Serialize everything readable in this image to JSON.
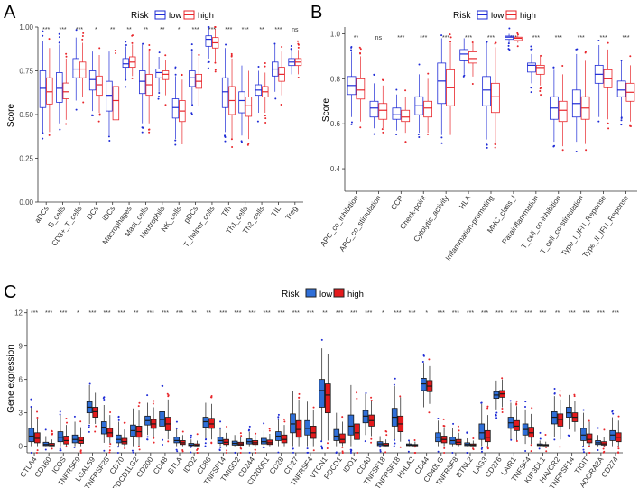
{
  "panels": [
    {
      "letter": "A",
      "legend_title": "Risk",
      "legend_items": [
        "low",
        "high"
      ],
      "ylabel": "Score",
      "ylim": [
        0,
        1
      ],
      "yticks": [
        "0.00",
        "0.25",
        "0.50",
        "0.75",
        "1.00"
      ],
      "ytick_values": [
        0,
        0.25,
        0.5,
        0.75,
        1.0
      ]
    },
    {
      "letter": "B",
      "legend_title": "Risk",
      "legend_items": [
        "low",
        "high"
      ],
      "ylabel": "Score",
      "ylim": [
        0.3,
        1.03
      ],
      "yticks": [
        "0.4",
        "0.6",
        "0.8",
        "1.0"
      ],
      "ytick_values": [
        0.4,
        0.6,
        0.8,
        1.0
      ]
    },
    {
      "letter": "C",
      "legend_title": "Risk",
      "legend_items": [
        "low",
        "high"
      ],
      "ylabel": "Gene expression",
      "ylim": [
        -0.6,
        12.3
      ],
      "yticks": [
        "0",
        "3",
        "6",
        "9",
        "12"
      ],
      "ytick_values": [
        0,
        3,
        6,
        9,
        12
      ]
    }
  ],
  "colors": {
    "low": "#1e2bd6",
    "high": "#e8262b",
    "low_fill": "#2f6fd8",
    "high_fill": "#e41a1c",
    "axis": "#333333",
    "text": "#222222"
  },
  "chart_data": [
    {
      "type": "boxplot",
      "title": "A",
      "ylabel": "Score",
      "ylim": [
        0,
        1
      ],
      "series": [
        {
          "name": "low"
        },
        {
          "name": "high"
        }
      ],
      "categories": [
        "aDCs",
        "B_cells",
        "CD8+_T_cells",
        "DCs",
        "iDCs",
        "Macrophages",
        "Mast_cells",
        "Neutrophils",
        "NK_cells",
        "pDCs",
        "T_helper_cells",
        "Tfh",
        "Th1_cells",
        "Th2_cells",
        "TIL",
        "Treg"
      ],
      "significance": [
        "***",
        "***",
        "***",
        "*",
        "**",
        "**",
        "**",
        "**",
        "*",
        "***",
        "***",
        "***",
        "***",
        "**",
        "***",
        "ns"
      ],
      "low": [
        [
          0.4,
          0.54,
          0.65,
          0.75,
          0.92
        ],
        [
          0.45,
          0.57,
          0.65,
          0.74,
          0.9
        ],
        [
          0.58,
          0.71,
          0.76,
          0.82,
          0.94
        ],
        [
          0.52,
          0.64,
          0.7,
          0.75,
          0.86
        ],
        [
          0.38,
          0.52,
          0.61,
          0.69,
          0.86
        ],
        [
          0.7,
          0.77,
          0.79,
          0.82,
          0.89
        ],
        [
          0.45,
          0.62,
          0.69,
          0.75,
          0.9
        ],
        [
          0.63,
          0.71,
          0.74,
          0.76,
          0.83
        ],
        [
          0.36,
          0.48,
          0.54,
          0.59,
          0.72
        ],
        [
          0.56,
          0.66,
          0.71,
          0.75,
          0.86
        ],
        [
          0.82,
          0.89,
          0.93,
          0.95,
          1.0
        ],
        [
          0.4,
          0.54,
          0.63,
          0.71,
          0.88
        ],
        [
          0.38,
          0.51,
          0.58,
          0.63,
          0.78
        ],
        [
          0.51,
          0.61,
          0.64,
          0.67,
          0.75
        ],
        [
          0.63,
          0.72,
          0.76,
          0.8,
          0.9
        ],
        [
          0.73,
          0.78,
          0.8,
          0.82,
          0.87
        ]
      ],
      "high": [
        [
          0.4,
          0.56,
          0.63,
          0.71,
          0.88
        ],
        [
          0.47,
          0.59,
          0.63,
          0.68,
          0.82
        ],
        [
          0.6,
          0.71,
          0.76,
          0.8,
          0.91
        ],
        [
          0.51,
          0.61,
          0.67,
          0.72,
          0.84
        ],
        [
          0.27,
          0.47,
          0.58,
          0.66,
          0.84
        ],
        [
          0.72,
          0.77,
          0.8,
          0.83,
          0.9
        ],
        [
          0.45,
          0.61,
          0.67,
          0.73,
          0.87
        ],
        [
          0.61,
          0.7,
          0.73,
          0.75,
          0.81
        ],
        [
          0.33,
          0.46,
          0.52,
          0.58,
          0.7
        ],
        [
          0.55,
          0.65,
          0.69,
          0.73,
          0.83
        ],
        [
          0.8,
          0.88,
          0.91,
          0.94,
          0.99
        ],
        [
          0.36,
          0.5,
          0.58,
          0.66,
          0.82
        ],
        [
          0.36,
          0.49,
          0.55,
          0.6,
          0.75
        ],
        [
          0.51,
          0.6,
          0.63,
          0.66,
          0.74
        ],
        [
          0.61,
          0.69,
          0.73,
          0.77,
          0.86
        ],
        [
          0.73,
          0.78,
          0.8,
          0.82,
          0.87
        ]
      ]
    },
    {
      "type": "boxplot",
      "title": "B",
      "ylabel": "Score",
      "ylim": [
        0.3,
        1.03
      ],
      "series": [
        {
          "name": "low"
        },
        {
          "name": "high"
        }
      ],
      "categories": [
        "APC_co_inhibition",
        "APC_co_stimulation",
        "CCR",
        "Check-point",
        "Cytolytic_activity",
        "HLA",
        "Inflammation-promoting",
        "MHC_class_I",
        "Parainflammation",
        "T_cell_co-inhibition",
        "T_cell_co-stimulation",
        "Type_I_IFN_Reponse",
        "Type_II_IFN_Reponse"
      ],
      "significance": [
        "**",
        "ns",
        "***",
        "***",
        "***",
        "***",
        "***",
        "***",
        "***",
        "***",
        "***",
        "***",
        "***"
      ],
      "low": [
        [
          0.63,
          0.73,
          0.77,
          0.81,
          0.92
        ],
        [
          0.58,
          0.63,
          0.67,
          0.7,
          0.78
        ],
        [
          0.57,
          0.62,
          0.64,
          0.67,
          0.73
        ],
        [
          0.56,
          0.64,
          0.68,
          0.72,
          0.82
        ],
        [
          0.55,
          0.69,
          0.79,
          0.87,
          0.98
        ],
        [
          0.82,
          0.88,
          0.91,
          0.93,
          0.98
        ],
        [
          0.53,
          0.68,
          0.75,
          0.81,
          0.96
        ],
        [
          0.96,
          0.975,
          0.985,
          0.99,
          1.0
        ],
        [
          0.78,
          0.83,
          0.86,
          0.87,
          0.91
        ],
        [
          0.52,
          0.62,
          0.67,
          0.72,
          0.84
        ],
        [
          0.52,
          0.63,
          0.69,
          0.75,
          0.91
        ],
        [
          0.63,
          0.78,
          0.82,
          0.86,
          0.95
        ],
        [
          0.63,
          0.72,
          0.75,
          0.79,
          0.88
        ]
      ],
      "high": [
        [
          0.61,
          0.71,
          0.75,
          0.8,
          0.9
        ],
        [
          0.58,
          0.62,
          0.66,
          0.69,
          0.77
        ],
        [
          0.56,
          0.61,
          0.63,
          0.66,
          0.72
        ],
        [
          0.56,
          0.63,
          0.67,
          0.7,
          0.8
        ],
        [
          0.55,
          0.68,
          0.76,
          0.84,
          0.96
        ],
        [
          0.81,
          0.87,
          0.89,
          0.92,
          0.96
        ],
        [
          0.51,
          0.65,
          0.72,
          0.78,
          0.94
        ],
        [
          0.96,
          0.97,
          0.98,
          0.985,
          0.995
        ],
        [
          0.77,
          0.82,
          0.85,
          0.86,
          0.9
        ],
        [
          0.5,
          0.61,
          0.66,
          0.7,
          0.82
        ],
        [
          0.51,
          0.62,
          0.67,
          0.72,
          0.88
        ],
        [
          0.62,
          0.76,
          0.8,
          0.84,
          0.93
        ],
        [
          0.61,
          0.7,
          0.74,
          0.78,
          0.86
        ]
      ]
    },
    {
      "type": "boxplot",
      "title": "C",
      "ylabel": "Gene expression",
      "ylim": [
        -0.6,
        12.3
      ],
      "series": [
        {
          "name": "low"
        },
        {
          "name": "high"
        }
      ],
      "categories": [
        "CTLA4",
        "CD160",
        "ICOS",
        "TNFRSF9",
        "LGALS9",
        "TNFRSF25",
        "CD70",
        "PDCD1LG2",
        "CD200",
        "CD48",
        "BTLA",
        "IDO2",
        "CD86",
        "TNFSF14",
        "TMIGD2",
        "CD244",
        "CD200R1",
        "CD28",
        "CD27",
        "TNFRSF4",
        "VTCN1",
        "PDCD1",
        "IDO1",
        "CD40",
        "TNFSF18",
        "TNFRSF18",
        "HHLA2",
        "CD44",
        "CD40LG",
        "TNFRSF8",
        "BTNL2",
        "LAG3",
        "CD276",
        "LAIR1",
        "TNFSF4",
        "KIR3DL1",
        "HAVCR2",
        "TNFRSF14",
        "TIGIT",
        "ADORA2A",
        "CD274"
      ],
      "significance": [
        "***",
        "***",
        "***",
        "*",
        "***",
        "***",
        "***",
        "**",
        "***",
        "***",
        "***",
        "**",
        "**",
        "***",
        "***",
        "***",
        "***",
        "***",
        "***",
        "***",
        "**",
        "***",
        "***",
        "***",
        "*",
        "***",
        "***",
        "*",
        "***",
        "***",
        "***",
        "***",
        "***",
        "***",
        "***",
        "***",
        "**",
        "***",
        "***",
        "***",
        "***"
      ],
      "low": [
        [
          0,
          0.4,
          0.9,
          1.6,
          3.5
        ],
        [
          0,
          0.05,
          0.15,
          0.35,
          0.9
        ],
        [
          0,
          0.4,
          0.8,
          1.3,
          2.8
        ],
        [
          0,
          0.3,
          0.6,
          1.0,
          2.2
        ],
        [
          2.0,
          3.0,
          3.5,
          4.0,
          5.5
        ],
        [
          0.3,
          1.1,
          1.7,
          2.2,
          3.7
        ],
        [
          0,
          0.3,
          0.6,
          1.0,
          2.2
        ],
        [
          0,
          0.9,
          1.4,
          1.9,
          3.4
        ],
        [
          1.0,
          1.9,
          2.3,
          2.7,
          3.9
        ],
        [
          0.8,
          1.8,
          2.4,
          3.1,
          4.9
        ],
        [
          0,
          0.3,
          0.5,
          0.8,
          1.6
        ],
        [
          0,
          0.05,
          0.1,
          0.25,
          0.6
        ],
        [
          0.7,
          1.7,
          2.2,
          2.6,
          3.9
        ],
        [
          0,
          0.25,
          0.5,
          0.8,
          1.6
        ],
        [
          0,
          0.1,
          0.25,
          0.45,
          1.0
        ],
        [
          0,
          0.2,
          0.4,
          0.65,
          1.3
        ],
        [
          0,
          0.2,
          0.4,
          0.7,
          1.4
        ],
        [
          0,
          0.5,
          0.9,
          1.3,
          2.4
        ],
        [
          0,
          1.2,
          2.0,
          2.9,
          5.0
        ],
        [
          0,
          1.0,
          1.6,
          2.3,
          4.0
        ],
        [
          0.5,
          3.5,
          5.0,
          6.0,
          8.8
        ],
        [
          0,
          0.5,
          0.9,
          1.5,
          3.0
        ],
        [
          0,
          1.0,
          1.8,
          2.8,
          5.5
        ],
        [
          1.0,
          2.1,
          2.7,
          3.2,
          4.7
        ],
        [
          0,
          0.05,
          0.2,
          0.4,
          0.9
        ],
        [
          0.6,
          1.8,
          2.6,
          3.4,
          5.4
        ],
        [
          0,
          0.05,
          0.1,
          0.2,
          0.5
        ],
        [
          3.5,
          5.0,
          5.6,
          6.1,
          7.5
        ],
        [
          0,
          0.4,
          0.8,
          1.2,
          2.3
        ],
        [
          0,
          0.2,
          0.5,
          0.8,
          1.6
        ],
        [
          0,
          0.05,
          0.15,
          0.3,
          0.7
        ],
        [
          0,
          0.6,
          1.2,
          2.0,
          3.8
        ],
        [
          3.3,
          4.3,
          4.6,
          4.9,
          5.9
        ],
        [
          0.6,
          1.6,
          2.1,
          2.6,
          3.9
        ],
        [
          0.2,
          1.0,
          1.5,
          2.0,
          3.3
        ],
        [
          0,
          0.05,
          0.1,
          0.2,
          0.5
        ],
        [
          0.8,
          2.0,
          2.6,
          3.1,
          4.5
        ],
        [
          1.5,
          2.6,
          3.0,
          3.5,
          4.6
        ],
        [
          0,
          0.5,
          1.0,
          1.6,
          3.0
        ],
        [
          0,
          0.15,
          0.3,
          0.5,
          1.0
        ],
        [
          0,
          0.5,
          1.0,
          1.4,
          2.6
        ]
      ],
      "high": [
        [
          0,
          0.3,
          0.7,
          1.2,
          2.5
        ],
        [
          0,
          0.03,
          0.1,
          0.25,
          0.6
        ],
        [
          0,
          0.2,
          0.5,
          0.9,
          1.9
        ],
        [
          0,
          0.25,
          0.5,
          0.8,
          1.7
        ],
        [
          2.0,
          2.6,
          3.1,
          3.5,
          4.8
        ],
        [
          0.2,
          0.8,
          1.2,
          1.6,
          2.8
        ],
        [
          0,
          0.2,
          0.4,
          0.7,
          1.5
        ],
        [
          0,
          0.8,
          1.3,
          1.8,
          3.2
        ],
        [
          0.8,
          1.6,
          2.0,
          2.4,
          3.5
        ],
        [
          0.6,
          1.4,
          2.0,
          2.6,
          4.2
        ],
        [
          0,
          0.15,
          0.3,
          0.5,
          1.0
        ],
        [
          0,
          0.03,
          0.08,
          0.2,
          0.5
        ],
        [
          0.6,
          1.6,
          2.0,
          2.5,
          3.8
        ],
        [
          0,
          0.15,
          0.35,
          0.6,
          1.2
        ],
        [
          0,
          0.08,
          0.2,
          0.35,
          0.8
        ],
        [
          0,
          0.15,
          0.3,
          0.5,
          1.0
        ],
        [
          0,
          0.15,
          0.3,
          0.55,
          1.1
        ],
        [
          0,
          0.3,
          0.6,
          1.0,
          1.9
        ],
        [
          0,
          0.8,
          1.5,
          2.3,
          4.2
        ],
        [
          0,
          0.7,
          1.2,
          1.8,
          3.3
        ],
        [
          0.5,
          3.0,
          4.6,
          5.6,
          8.3
        ],
        [
          0,
          0.3,
          0.6,
          1.1,
          2.2
        ],
        [
          0,
          0.6,
          1.2,
          2.0,
          4.2
        ],
        [
          0.9,
          1.8,
          2.3,
          2.8,
          4.1
        ],
        [
          0,
          0.03,
          0.1,
          0.25,
          0.6
        ],
        [
          0.4,
          1.3,
          2.0,
          2.7,
          4.4
        ],
        [
          0,
          0.03,
          0.08,
          0.15,
          0.4
        ],
        [
          3.8,
          4.9,
          5.4,
          5.9,
          7.2
        ],
        [
          0,
          0.3,
          0.6,
          0.9,
          1.7
        ],
        [
          0,
          0.15,
          0.35,
          0.6,
          1.2
        ],
        [
          0,
          0.03,
          0.1,
          0.2,
          0.5
        ],
        [
          0,
          0.4,
          0.8,
          1.4,
          2.8
        ],
        [
          3.5,
          4.4,
          4.7,
          5.0,
          6.0
        ],
        [
          0.5,
          1.4,
          1.8,
          2.3,
          3.6
        ],
        [
          0.2,
          0.8,
          1.2,
          1.7,
          2.9
        ],
        [
          0,
          0.03,
          0.08,
          0.15,
          0.4
        ],
        [
          0.6,
          1.8,
          2.4,
          2.9,
          4.2
        ],
        [
          1.3,
          2.2,
          2.6,
          3.0,
          4.1
        ],
        [
          0,
          0.3,
          0.6,
          1.1,
          2.2
        ],
        [
          0,
          0.1,
          0.2,
          0.4,
          0.8
        ],
        [
          0,
          0.4,
          0.8,
          1.2,
          2.3
        ]
      ]
    }
  ]
}
